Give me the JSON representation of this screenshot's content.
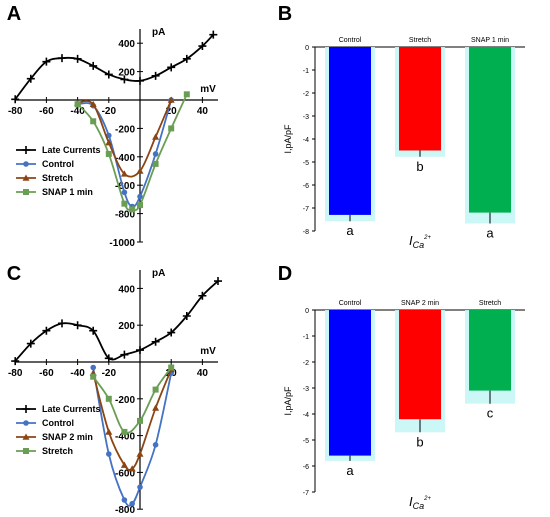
{
  "figure": {
    "panels": {
      "A": "A",
      "B": "B",
      "C": "C",
      "D": "D"
    }
  },
  "chart_data": [
    {
      "panel": "A",
      "type": "line",
      "xlabel": "mV",
      "ylabel": "pA",
      "xlim": [
        -80,
        50
      ],
      "ylim": [
        -1000,
        500
      ],
      "x_ticks": [
        -80,
        -60,
        -40,
        -20,
        20,
        40
      ],
      "y_ticks": [
        400,
        200,
        -200,
        -400,
        -600,
        -800,
        -1000
      ],
      "legend": [
        "Late Currents",
        "Control",
        "Stretch",
        "SNAP 1 min"
      ],
      "series": [
        {
          "name": "Late Currents",
          "color": "#000000",
          "marker": "plus",
          "x": [
            -80,
            -70,
            -60,
            -50,
            -40,
            -30,
            -20,
            -10,
            0,
            10,
            20,
            30,
            40,
            47
          ],
          "y": [
            5,
            150,
            270,
            295,
            290,
            240,
            180,
            145,
            135,
            170,
            230,
            290,
            380,
            460
          ]
        },
        {
          "name": "Control",
          "color": "#4472c4",
          "marker": "circle",
          "x": [
            -40,
            -30,
            -20,
            -10,
            -5,
            0,
            10,
            20
          ],
          "y": [
            -30,
            -40,
            -250,
            -650,
            -750,
            -680,
            -380,
            0
          ]
        },
        {
          "name": "Stretch",
          "color": "#8b4513",
          "marker": "triangle",
          "x": [
            -40,
            -30,
            -20,
            -10,
            0,
            10,
            20
          ],
          "y": [
            -20,
            -30,
            -300,
            -520,
            -500,
            -260,
            0
          ]
        },
        {
          "name": "SNAP 1 min",
          "color": "#6a9e54",
          "marker": "square",
          "x": [
            -40,
            -30,
            -20,
            -10,
            -5,
            0,
            10,
            20,
            30
          ],
          "y": [
            -30,
            -150,
            -380,
            -730,
            -770,
            -740,
            -450,
            -200,
            40
          ]
        }
      ]
    },
    {
      "panel": "B",
      "type": "bar",
      "ylabel": "I,pA/pF",
      "xlabel": "ICa2+",
      "categories": [
        "Control",
        "Stretch",
        "SNAP 1 min"
      ],
      "values": [
        -7.3,
        -4.5,
        -7.2
      ],
      "errors": [
        0.1,
        0.1,
        0.3
      ],
      "significance": [
        "a",
        "b",
        "a"
      ],
      "colors": [
        "#0000ff",
        "#ff0000",
        "#00b050"
      ],
      "ylim": [
        -8,
        0
      ],
      "y_ticks": [
        0,
        -1,
        -2,
        -3,
        -4,
        -5,
        -6,
        -7,
        -8
      ]
    },
    {
      "panel": "C",
      "type": "line",
      "xlabel": "mV",
      "ylabel": "pA",
      "xlim": [
        -80,
        50
      ],
      "ylim": [
        -800,
        500
      ],
      "x_ticks": [
        -80,
        -60,
        -40,
        -20,
        20,
        40
      ],
      "y_ticks": [
        400,
        200,
        -200,
        -400,
        -600,
        -800
      ],
      "legend": [
        "Late Currents",
        "Control",
        "SNAP 2 min",
        "Stretch"
      ],
      "series": [
        {
          "name": "Late Currents",
          "color": "#000000",
          "marker": "plus",
          "x": [
            -80,
            -70,
            -60,
            -50,
            -40,
            -30,
            -20,
            -10,
            0,
            10,
            20,
            30,
            40,
            50
          ],
          "y": [
            5,
            100,
            170,
            210,
            200,
            170,
            20,
            40,
            65,
            110,
            160,
            250,
            360,
            440
          ]
        },
        {
          "name": "Control",
          "color": "#4472c4",
          "marker": "circle",
          "x": [
            -30,
            -20,
            -10,
            -5,
            0,
            10,
            20
          ],
          "y": [
            -30,
            -500,
            -750,
            -770,
            -680,
            -450,
            -60
          ]
        },
        {
          "name": "SNAP 2 min",
          "color": "#8b4513",
          "marker": "triangle",
          "x": [
            -30,
            -20,
            -10,
            -5,
            0,
            10,
            20
          ],
          "y": [
            -60,
            -380,
            -560,
            -580,
            -500,
            -250,
            -40
          ]
        },
        {
          "name": "Stretch",
          "color": "#6a9e54",
          "marker": "square",
          "x": [
            -30,
            -20,
            -10,
            0,
            10,
            20
          ],
          "y": [
            -80,
            -200,
            -380,
            -320,
            -150,
            -30
          ]
        }
      ]
    },
    {
      "panel": "D",
      "type": "bar",
      "ylabel": "I,pA/pF",
      "xlabel": "ICa2+",
      "categories": [
        "Control",
        "SNAP 2 min",
        "Stretch"
      ],
      "values": [
        -5.6,
        -4.2,
        -3.1
      ],
      "errors": [
        0.05,
        0.35,
        0.35
      ],
      "significance": [
        "a",
        "b",
        "c"
      ],
      "colors": [
        "#0000ff",
        "#ff0000",
        "#00b050"
      ],
      "ylim": [
        -7,
        0
      ],
      "y_ticks": [
        0,
        -1,
        -2,
        -3,
        -4,
        -5,
        -6,
        -7
      ]
    }
  ]
}
